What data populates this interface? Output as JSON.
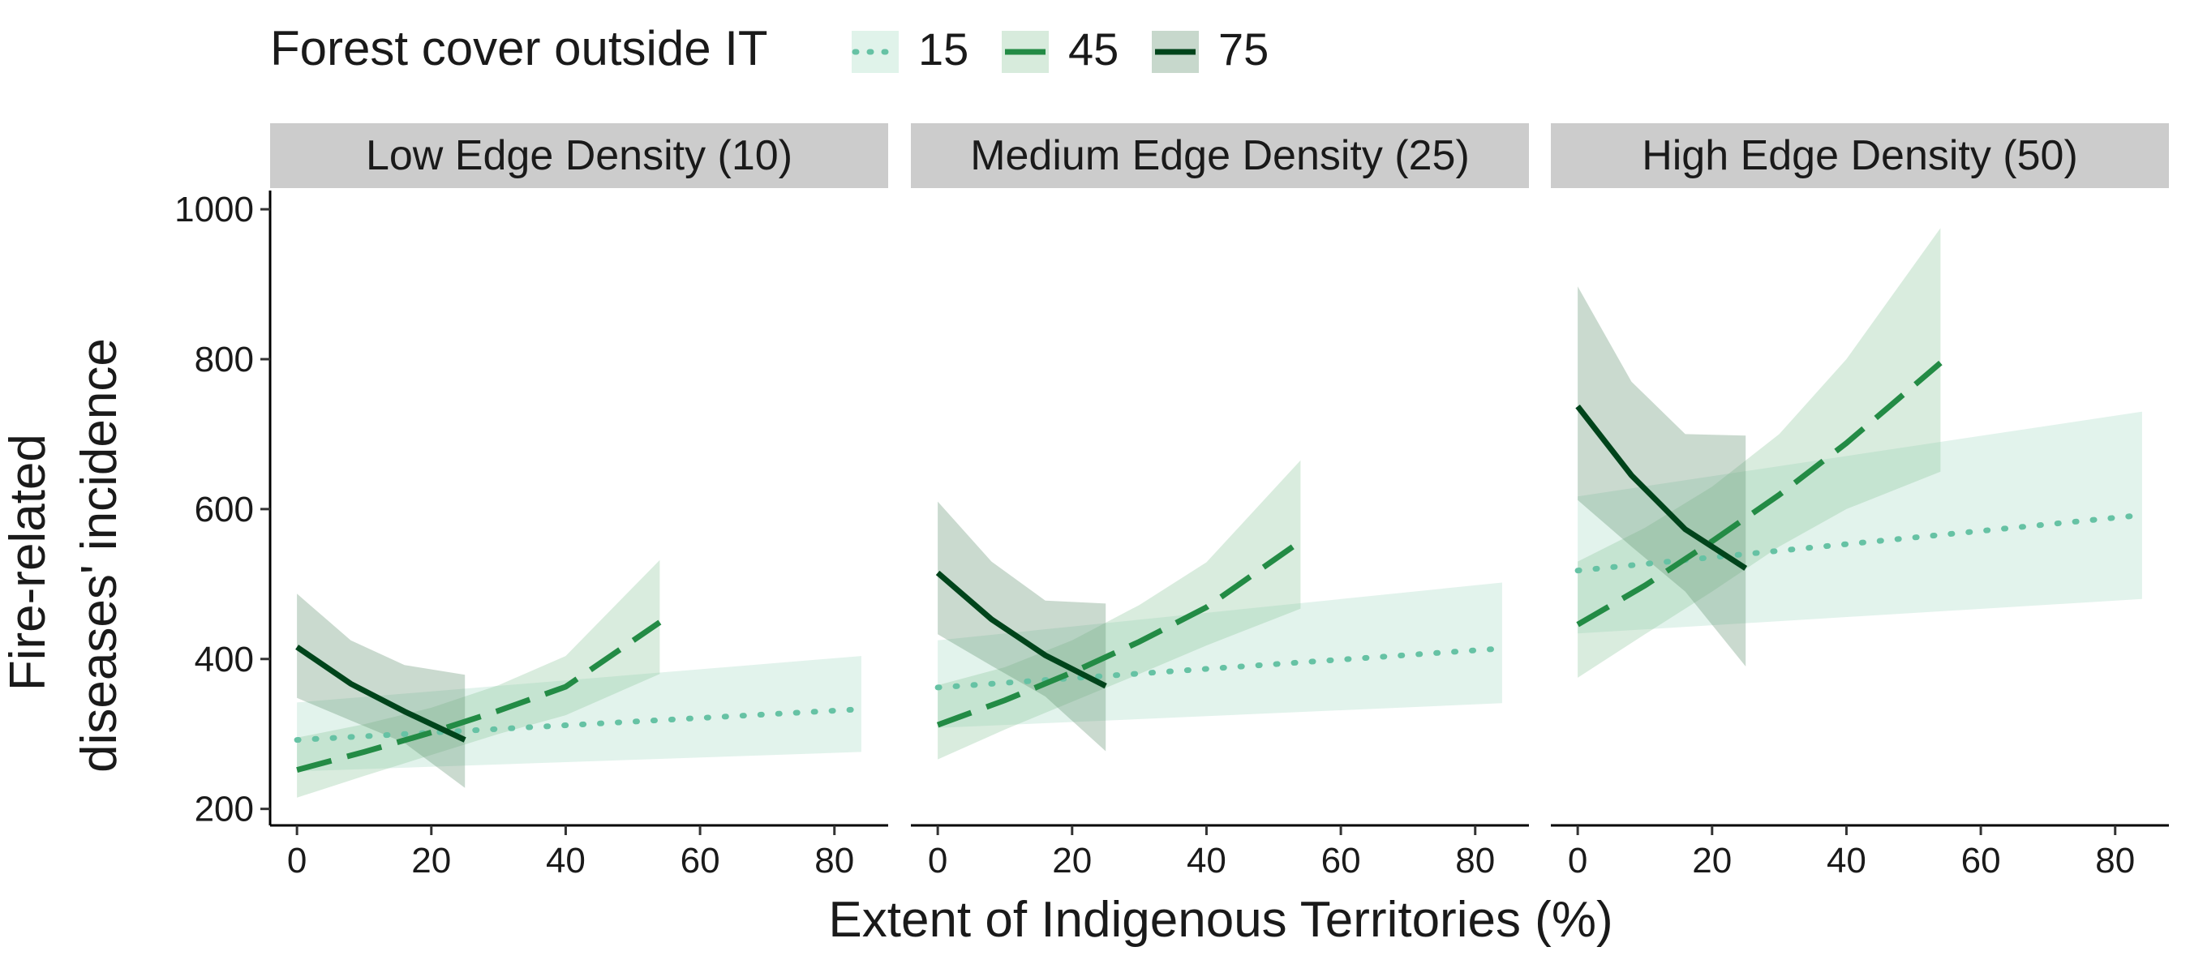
{
  "legend": {
    "title": "Forest cover outside IT",
    "entries": [
      {
        "label": "15",
        "color": "#66c2a4",
        "fill": "#a6dcc4",
        "dash": "dotted"
      },
      {
        "label": "45",
        "color": "#238b45",
        "fill": "#8cc59c",
        "dash": "dashed"
      },
      {
        "label": "75",
        "color": "#00441b",
        "fill": "#5e8f6e",
        "dash": "solid"
      }
    ]
  },
  "chart_data": {
    "type": "line",
    "xlabel": "Extent of Indigenous Territories (%)",
    "ylabel_lines": [
      "Fire-related",
      "diseases' incidence"
    ],
    "xlim": [
      -4,
      88
    ],
    "ylim": [
      178,
      1025
    ],
    "x_ticks": [
      0,
      20,
      40,
      60,
      80
    ],
    "y_ticks": [
      200,
      400,
      600,
      800,
      1000
    ],
    "grid": false,
    "legend_position": "top",
    "panels": [
      {
        "title": "Low Edge Density (10)",
        "series": [
          {
            "name": "15",
            "x": [
              0,
              84
            ],
            "y": [
              292,
              333
            ],
            "lower": [
              250,
              276
            ],
            "upper": [
              342,
              404
            ]
          },
          {
            "name": "45",
            "x": [
              0,
              10,
              20,
              30,
              40,
              54
            ],
            "y": [
              252,
              276,
              302,
              331,
              363,
              449
            ],
            "lower": [
              215,
              244,
              272,
              300,
              325,
              380
            ],
            "upper": [
              295,
              313,
              335,
              365,
              404,
              532
            ]
          },
          {
            "name": "75",
            "x": [
              0,
              8,
              16,
              25
            ],
            "y": [
              416,
              367,
              330,
              292
            ],
            "lower": [
              348,
              318,
              288,
              228
            ],
            "upper": [
              487,
              425,
              392,
              379
            ]
          }
        ]
      },
      {
        "title": "Medium Edge Density (25)",
        "series": [
          {
            "name": "15",
            "x": [
              0,
              84
            ],
            "y": [
              362,
              414
            ],
            "lower": [
              308,
              341
            ],
            "upper": [
              425,
              502
            ]
          },
          {
            "name": "45",
            "x": [
              0,
              10,
              20,
              30,
              40,
              54
            ],
            "y": [
              312,
              345,
              382,
              423,
              469,
              557
            ],
            "lower": [
              266,
              306,
              343,
              380,
              418,
              467
            ],
            "upper": [
              365,
              389,
              425,
              472,
              529,
              665
            ]
          },
          {
            "name": "75",
            "x": [
              0,
              8,
              16,
              25
            ],
            "y": [
              515,
              453,
              405,
              364
            ],
            "lower": [
              433,
              391,
              350,
              277
            ],
            "upper": [
              610,
              530,
              478,
              474
            ]
          }
        ]
      },
      {
        "title": "High Edge Density (50)",
        "series": [
          {
            "name": "15",
            "x": [
              0,
              84
            ],
            "y": [
              518,
              592
            ],
            "lower": [
              434,
              480
            ],
            "upper": [
              617,
              730
            ]
          },
          {
            "name": "45",
            "x": [
              0,
              10,
              20,
              30,
              40,
              54
            ],
            "y": [
              446,
              498,
              557,
              619,
              688,
              795
            ],
            "lower": [
              375,
              433,
              490,
              550,
              600,
              650
            ],
            "upper": [
              530,
              575,
              630,
              700,
              800,
              975
            ]
          },
          {
            "name": "75",
            "x": [
              0,
              8,
              16,
              25
            ],
            "y": [
              737,
              645,
              573,
              521
            ],
            "lower": [
              612,
              550,
              490,
              390
            ],
            "upper": [
              897,
              770,
              700,
              698
            ]
          }
        ]
      }
    ]
  }
}
